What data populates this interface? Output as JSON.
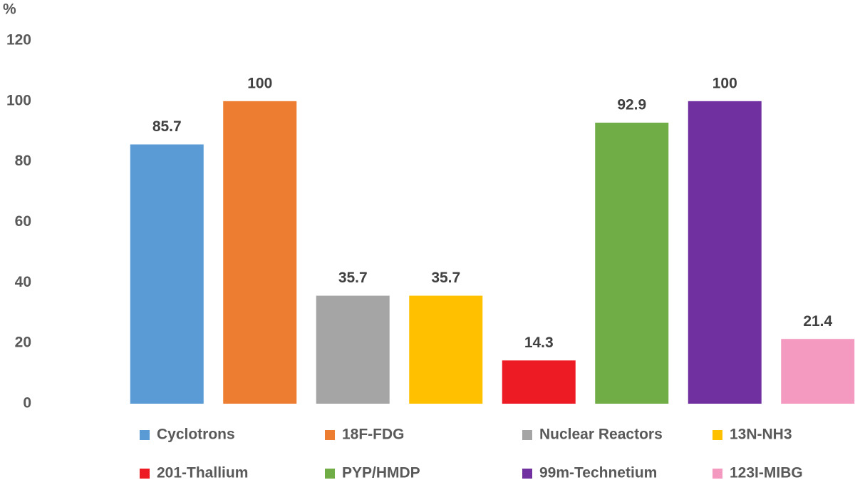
{
  "chart_data": {
    "type": "bar",
    "y_label": "%",
    "ylim": [
      0,
      120
    ],
    "yticks": [
      0,
      20,
      40,
      60,
      80,
      100,
      120
    ],
    "grid": false,
    "series": [
      {
        "name": "Cyclotrons",
        "color": "#5b9bd5",
        "values": [
          85.7
        ]
      },
      {
        "name": "18F-FDG",
        "color": "#ed7d31",
        "values": [
          100
        ]
      },
      {
        "name": "Nuclear Reactors",
        "color": "#a5a5a5",
        "values": [
          35.7
        ]
      },
      {
        "name": "13N-NH3",
        "color": "#ffc000",
        "values": [
          35.7
        ]
      },
      {
        "name": "201-Thallium",
        "color": "#ed1c24",
        "values": [
          14.3
        ]
      },
      {
        "name": "PYP/HMDP",
        "color": "#70ad47",
        "values": [
          92.9
        ]
      },
      {
        "name": "99m-Technetium",
        "color": "#7030a0",
        "values": [
          100
        ]
      },
      {
        "name": "123I-MIBG",
        "color": "#f49ac1",
        "values": [
          21.4
        ]
      }
    ]
  }
}
